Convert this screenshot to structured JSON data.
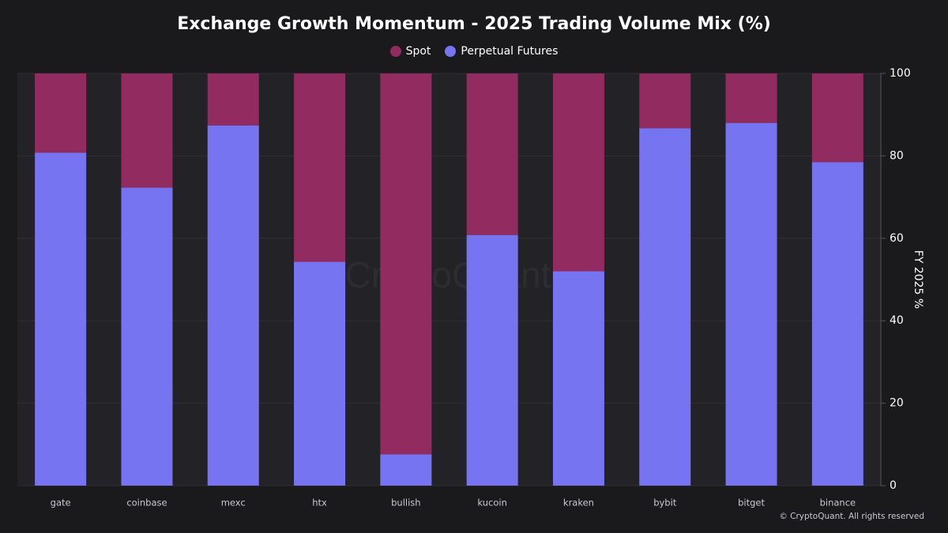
{
  "chart_data": {
    "type": "bar",
    "stacked": true,
    "title": "Exchange Growth Momentum - 2025 Trading Volume Mix (%)",
    "ylabel": "FY 2025 %",
    "xlabel": "",
    "ylim": [
      0,
      100
    ],
    "yticks": [
      0,
      20,
      40,
      60,
      80,
      100
    ],
    "legend_position": "top-center",
    "grid": true,
    "categories": [
      "gate",
      "coinbase",
      "mexc",
      "htx",
      "bullish",
      "kucoin",
      "kraken",
      "bybit",
      "bitget",
      "binance"
    ],
    "series": [
      {
        "name": "Perpetual Futures",
        "color": "#7774f1",
        "values": [
          80.8,
          72.3,
          87.4,
          54.3,
          7.6,
          60.8,
          52.0,
          86.7,
          88.0,
          78.5
        ]
      },
      {
        "name": "Spot",
        "color": "#922b5f",
        "values": [
          19.2,
          27.7,
          12.6,
          45.7,
          92.4,
          39.2,
          48.0,
          13.3,
          12.0,
          21.5
        ]
      }
    ],
    "legend_order": [
      "Spot",
      "Perpetual Futures"
    ]
  },
  "watermark": "CryptoQuant",
  "copyright": "© CryptoQuant. All rights reserved"
}
